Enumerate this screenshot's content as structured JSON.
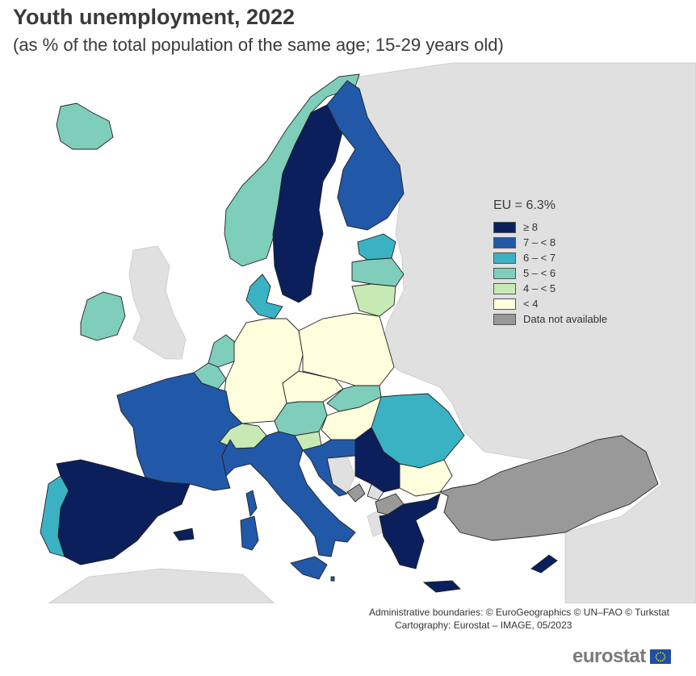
{
  "title": "Youth unemployment, 2022",
  "subtitle": "(as % of the total population of the same age; 15-29 years old)",
  "legend": {
    "title": "EU = 6.3%",
    "items": [
      {
        "label": "≥ 8",
        "color": "#0b1f5c"
      },
      {
        "label": "7 – < 8",
        "color": "#2158a8"
      },
      {
        "label": "6 – < 7",
        "color": "#3bb2c4"
      },
      {
        "label": "5 – < 6",
        "color": "#7fcdbb"
      },
      {
        "label": "4 – < 5",
        "color": "#c7e9b4"
      },
      {
        "label": "< 4",
        "color": "#ffffdd"
      },
      {
        "label": "Data not available",
        "color": "#999999"
      }
    ]
  },
  "credits": {
    "line1": "Administrative boundaries: © EuroGeographics © UN–FAO © Turkstat",
    "line2": "Cartography: Eurostat – IMAGE, 05/2023"
  },
  "logo": "eurostat",
  "colors": {
    "sea": "#ffffff",
    "non_covered_land": "#e0e0e0",
    "border": "#222222"
  }
}
